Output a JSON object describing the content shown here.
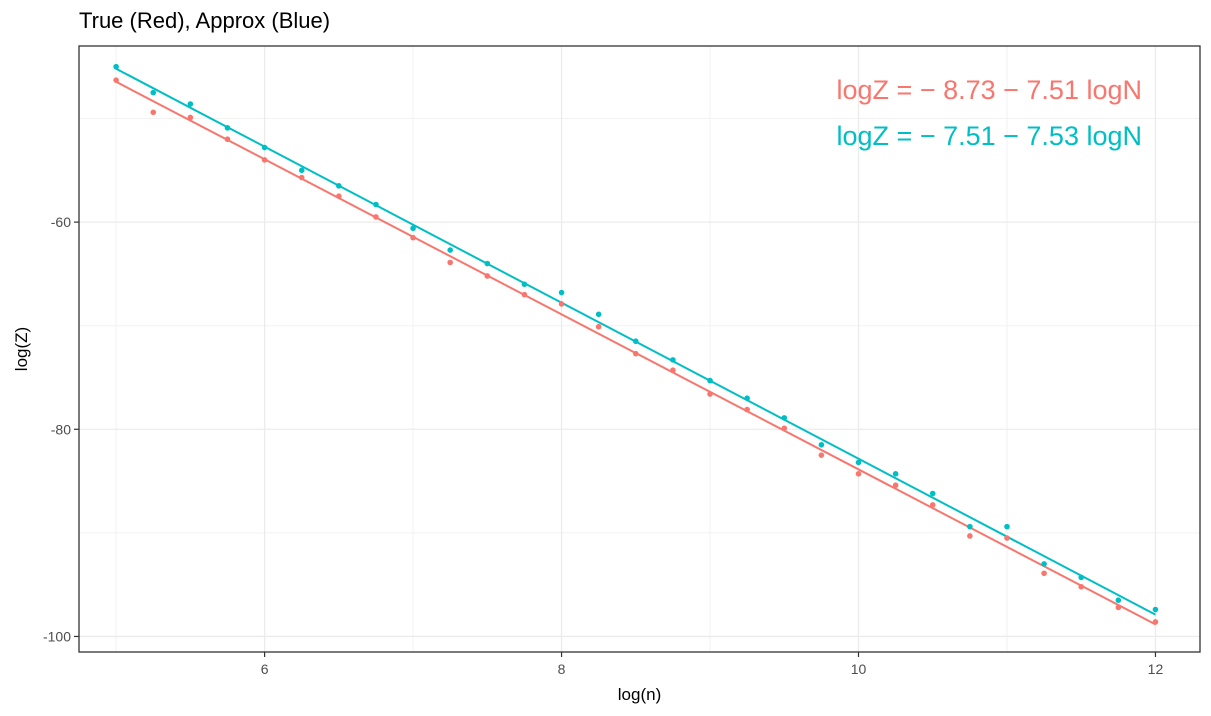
{
  "chart_data": {
    "type": "scatter",
    "title": "True (Red), Approx (Blue)",
    "xlabel": "log(n)",
    "ylabel": "log(Z)",
    "xlim": [
      4.75,
      12.3
    ],
    "ylim": [
      -101.5,
      -43
    ],
    "x_ticks": [
      6,
      8,
      10,
      12
    ],
    "y_ticks": [
      -60,
      -80,
      -100
    ],
    "x_tick_labels": [
      "6",
      "8",
      "10",
      "12"
    ],
    "y_tick_labels": [
      "-60",
      "-80",
      "-100"
    ],
    "grid": true,
    "legend": "none",
    "x": [
      5.0,
      5.25,
      5.5,
      5.75,
      6.0,
      6.25,
      6.5,
      6.75,
      7.0,
      7.25,
      7.5,
      7.75,
      8.0,
      8.25,
      8.5,
      8.75,
      9.0,
      9.25,
      9.5,
      9.75,
      10.0,
      10.25,
      10.5,
      10.75,
      11.0,
      11.25,
      11.5,
      11.75,
      12.0
    ],
    "series": [
      {
        "color": "#F8766D",
        "values": [
          -46.3,
          -49.4,
          -49.9,
          -52.0,
          -54.0,
          -55.7,
          -57.5,
          -59.5,
          -61.5,
          -63.9,
          -65.2,
          -67.0,
          -67.9,
          -70.1,
          -72.7,
          -74.3,
          -76.6,
          -78.1,
          -79.9,
          -82.5,
          -84.3,
          -85.4,
          -87.3,
          -90.3,
          -90.5,
          -93.9,
          -95.2,
          -97.2,
          -98.6
        ],
        "fit_intercept": -8.73,
        "fit_slope": -7.51
      },
      {
        "color": "#00BFC4",
        "values": [
          -45.0,
          -47.5,
          -48.6,
          -50.9,
          -52.8,
          -55.0,
          -56.5,
          -58.3,
          -60.6,
          -62.7,
          -64.0,
          -66.0,
          -66.8,
          -68.9,
          -71.5,
          -73.3,
          -75.3,
          -77.0,
          -78.9,
          -81.5,
          -83.2,
          -84.3,
          -86.2,
          -89.4,
          -89.4,
          -93.0,
          -94.3,
          -96.5,
          -97.4
        ],
        "fit_intercept": -7.51,
        "fit_slope": -7.53
      }
    ],
    "annotations": [
      {
        "text": "logZ = − 8.73 − 7.51 logN",
        "color": "#F8766D"
      },
      {
        "text": "logZ = − 7.51 − 7.53 logN",
        "color": "#00BFC4"
      }
    ]
  }
}
